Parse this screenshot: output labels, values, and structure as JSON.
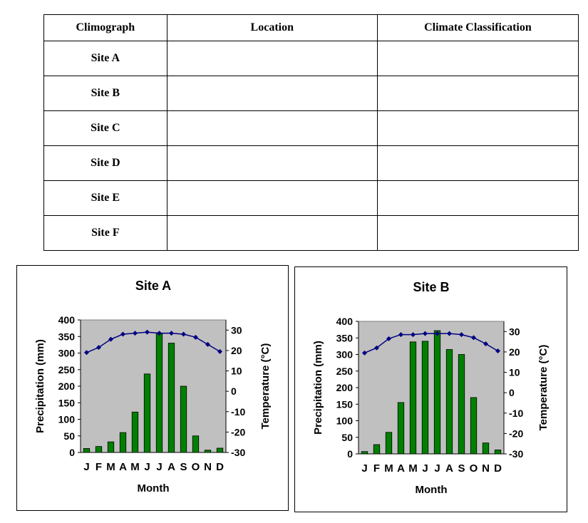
{
  "table": {
    "headers": [
      "Climograph",
      "Location",
      "Climate Classification"
    ],
    "rows": [
      [
        "Site A",
        "",
        ""
      ],
      [
        "Site B",
        "",
        ""
      ],
      [
        "Site C",
        "",
        ""
      ],
      [
        "Site D",
        "",
        ""
      ],
      [
        "Site E",
        "",
        ""
      ],
      [
        "Site F",
        "",
        ""
      ]
    ]
  },
  "chart_data": [
    {
      "type": "bar",
      "title": "Site A",
      "xlabel": "Month",
      "ylabel": "Precipitation (mm)",
      "y2label": "Temperature (°C)",
      "categories": [
        "J",
        "F",
        "M",
        "A",
        "M",
        "J",
        "J",
        "A",
        "S",
        "O",
        "N",
        "D"
      ],
      "ylim": [
        0,
        400
      ],
      "yticks": [
        0,
        50,
        100,
        150,
        200,
        250,
        300,
        350,
        400
      ],
      "y2lim": [
        -30,
        35
      ],
      "y2ticks": [
        -30,
        -20,
        -10,
        0,
        10,
        20,
        30
      ],
      "grid": false,
      "plot_background": "#c0c0c0",
      "bar_color": "#008000",
      "line_color": "#000080",
      "series": [
        {
          "name": "Precipitation",
          "type": "bar",
          "axis": "left",
          "values": [
            12,
            18,
            32,
            60,
            122,
            237,
            358,
            330,
            200,
            50,
            7,
            13
          ]
        },
        {
          "name": "Temperature",
          "type": "line",
          "axis": "right",
          "values": [
            19,
            21.5,
            25.5,
            28,
            28.5,
            29,
            28.5,
            28.5,
            28,
            26.5,
            23,
            19.5
          ]
        }
      ]
    },
    {
      "type": "bar",
      "title": "Site B",
      "xlabel": "Month",
      "ylabel": "Precipitation (mm)",
      "y2label": "Temperature (°C)",
      "categories": [
        "J",
        "F",
        "M",
        "A",
        "M",
        "J",
        "J",
        "A",
        "S",
        "O",
        "N",
        "D"
      ],
      "ylim": [
        0,
        400
      ],
      "yticks": [
        0,
        50,
        100,
        150,
        200,
        250,
        300,
        350,
        400
      ],
      "y2lim": [
        -30,
        35
      ],
      "y2ticks": [
        -30,
        -20,
        -10,
        0,
        10,
        20,
        30
      ],
      "grid": false,
      "plot_background": "#c0c0c0",
      "bar_color": "#008000",
      "line_color": "#000080",
      "series": [
        {
          "name": "Precipitation",
          "type": "bar",
          "axis": "left",
          "values": [
            7,
            28,
            65,
            155,
            338,
            340,
            372,
            315,
            300,
            170,
            33,
            12
          ]
        },
        {
          "name": "Temperature",
          "type": "line",
          "axis": "right",
          "values": [
            19.5,
            22,
            26.5,
            28.5,
            28.5,
            29,
            29,
            29,
            28.5,
            27,
            24,
            20.5
          ]
        }
      ]
    }
  ]
}
